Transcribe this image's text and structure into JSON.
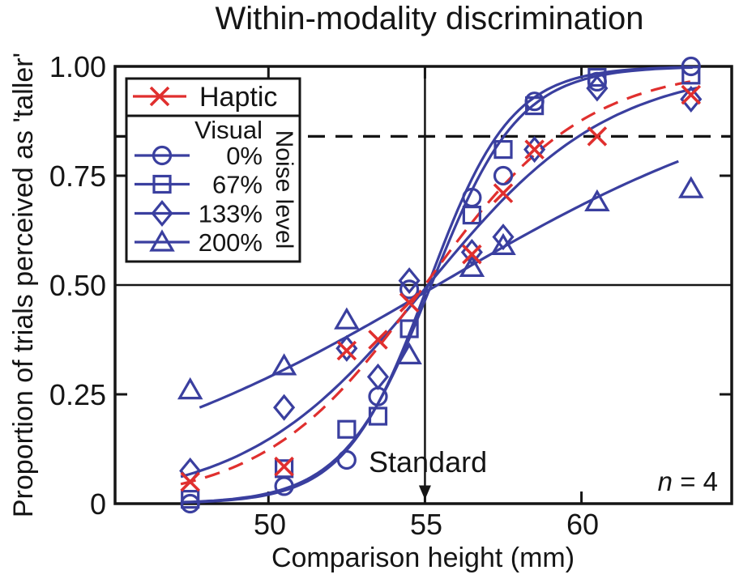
{
  "title": "Within-modality discrimination",
  "axes": {
    "xlabel": "Comparison height (mm)",
    "ylabel": "Proportion of trials perceived as 'taller'",
    "xlim": [
      45.1,
      64.8
    ],
    "ylim": [
      0,
      1
    ],
    "xticks": [
      {
        "value": 50,
        "label": "50"
      },
      {
        "value": 55,
        "label": "55"
      },
      {
        "value": 60,
        "label": "60"
      }
    ],
    "yticks": [
      {
        "value": 1.0,
        "label": "1.00"
      },
      {
        "value": 0.75,
        "label": "0.75"
      },
      {
        "value": 0.5,
        "label": "0.50"
      },
      {
        "value": 0.25,
        "label": "0.25"
      },
      {
        "value": 0,
        "label": "0"
      }
    ]
  },
  "reference_lines": {
    "halfway_y": 0.5,
    "threshold_y": 0.84,
    "standard_x": 55
  },
  "annotations": {
    "standard": "Standard",
    "n_italic": "n",
    "n_rest": " = 4"
  },
  "legend": {
    "haptic": {
      "label": "Haptic",
      "marker": "x"
    },
    "visual_header": "Visual",
    "noise_header": "Noise level",
    "items": [
      {
        "marker": "circle",
        "label": "0%"
      },
      {
        "marker": "square",
        "label": "67%"
      },
      {
        "marker": "diamond",
        "label": "133%"
      },
      {
        "marker": "triangle",
        "label": "200%"
      }
    ]
  },
  "colors": {
    "blue": "#3a3f9f",
    "red": "#e02f2e",
    "ink": "#151515"
  },
  "chart_data": {
    "type": "scatter",
    "title": "Within-modality discrimination",
    "xlabel": "Comparison height (mm)",
    "ylabel": "Proportion of trials perceived as 'taller'",
    "xlim": [
      45.1,
      64.8
    ],
    "ylim": [
      0,
      1
    ],
    "standard_mm": 55,
    "threshold_line_y": 0.84,
    "midline_y": 0.5,
    "n_subjects": 4,
    "series": [
      {
        "name": "Haptic",
        "marker": "x",
        "color": "#e02f2e",
        "x": [
          47.5,
          50.5,
          52.5,
          53.5,
          54.5,
          56.5,
          57.5,
          58.5,
          60.5,
          63.5
        ],
        "y": [
          0.05,
          0.085,
          0.35,
          0.375,
          0.46,
          0.57,
          0.71,
          0.81,
          0.84,
          0.935
        ],
        "fit": {
          "type": "logistic",
          "pse": 55.0,
          "k": 2.55,
          "range": [
            47.2,
            63.6
          ],
          "dash": true
        }
      },
      {
        "name": "Visual 0% noise",
        "marker": "circle",
        "color": "#3a3f9f",
        "x": [
          47.5,
          50.5,
          52.5,
          53.5,
          54.5,
          56.5,
          57.5,
          58.5,
          60.5,
          63.5
        ],
        "y": [
          0.0,
          0.04,
          0.1,
          0.245,
          0.49,
          0.7,
          0.75,
          0.92,
          0.965,
          1.0
        ],
        "fit": {
          "type": "logistic",
          "pse": 55.1,
          "k": 1.32,
          "range": [
            47.2,
            63.6
          ],
          "dash": false
        }
      },
      {
        "name": "Visual 67% noise",
        "marker": "square",
        "color": "#3a3f9f",
        "x": [
          47.5,
          50.5,
          52.5,
          53.5,
          54.5,
          56.5,
          57.5,
          58.5,
          60.5,
          63.5
        ],
        "y": [
          0.01,
          0.08,
          0.17,
          0.2,
          0.4,
          0.66,
          0.81,
          0.91,
          0.975,
          0.98
        ],
        "fit": {
          "type": "logistic",
          "pse": 55.2,
          "k": 1.4,
          "range": [
            47.2,
            63.6
          ],
          "dash": false
        }
      },
      {
        "name": "Visual 133% noise",
        "marker": "diamond",
        "color": "#3a3f9f",
        "x": [
          47.5,
          50.5,
          52.5,
          53.5,
          54.5,
          56.5,
          57.5,
          58.5,
          60.5,
          63.5
        ],
        "y": [
          0.075,
          0.22,
          0.355,
          0.29,
          0.51,
          0.575,
          0.61,
          0.81,
          0.95,
          0.925
        ],
        "fit": {
          "type": "logistic",
          "pse": 55.1,
          "k": 2.9,
          "range": [
            47.2,
            63.7
          ],
          "dash": false
        }
      },
      {
        "name": "Visual 200% noise",
        "marker": "triangle",
        "color": "#3a3f9f",
        "x": [
          47.5,
          50.5,
          52.5,
          54.5,
          56.5,
          57.5,
          60.5,
          63.5
        ],
        "y": [
          0.26,
          0.315,
          0.42,
          0.34,
          0.54,
          0.59,
          0.69,
          0.72
        ],
        "fit": {
          "type": "logistic",
          "pse": 55.4,
          "k": 6.0,
          "range": [
            47.8,
            63.2
          ],
          "dash": false
        }
      }
    ]
  }
}
